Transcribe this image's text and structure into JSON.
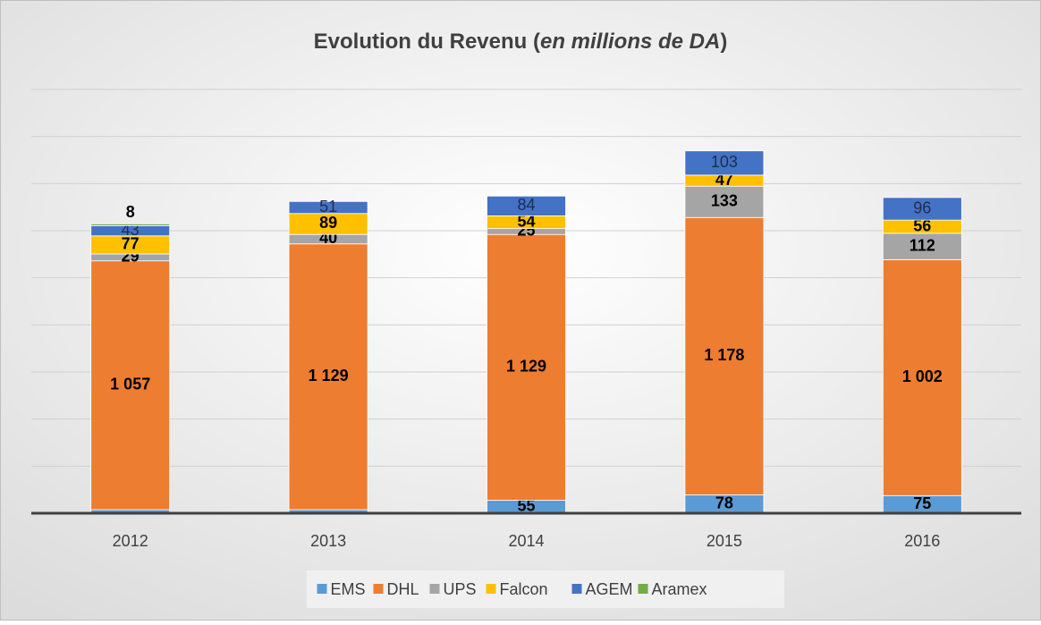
{
  "chart_data": {
    "type": "stacked_bar",
    "title": "Evolution du Revenu (en millions de DA)",
    "categories": [
      "2012",
      "2013",
      "2014",
      "2015",
      "2016"
    ],
    "series": [
      {
        "name": "EMS",
        "color": "#5b9bd5",
        "values": [
          15,
          15,
          55,
          78,
          75
        ]
      },
      {
        "name": "DHL",
        "color": "#ed7d31",
        "values": [
          1057,
          1129,
          1129,
          1178,
          1002
        ],
        "value_labels": [
          "1 057",
          "1 129",
          "1 129",
          "1 178",
          "1 002"
        ]
      },
      {
        "name": "UPS",
        "color": "#a5a5a5",
        "values": [
          29,
          40,
          25,
          133,
          112
        ]
      },
      {
        "name": "Falcon",
        "color": "#ffc000",
        "values": [
          77,
          89,
          54,
          47,
          56
        ]
      },
      {
        "name": "AGEM",
        "color": "#4472c4",
        "values": [
          43,
          51,
          84,
          103,
          96
        ]
      },
      {
        "name": "Aramex",
        "color": "#70ad47",
        "values": [
          8,
          null,
          null,
          null,
          null
        ]
      }
    ],
    "ylim": [
      0,
      1800
    ],
    "yticks": [
      0,
      200,
      400,
      600,
      800,
      1000,
      1200,
      1400,
      1600,
      1800
    ],
    "grid": true,
    "legend": "bottom"
  }
}
